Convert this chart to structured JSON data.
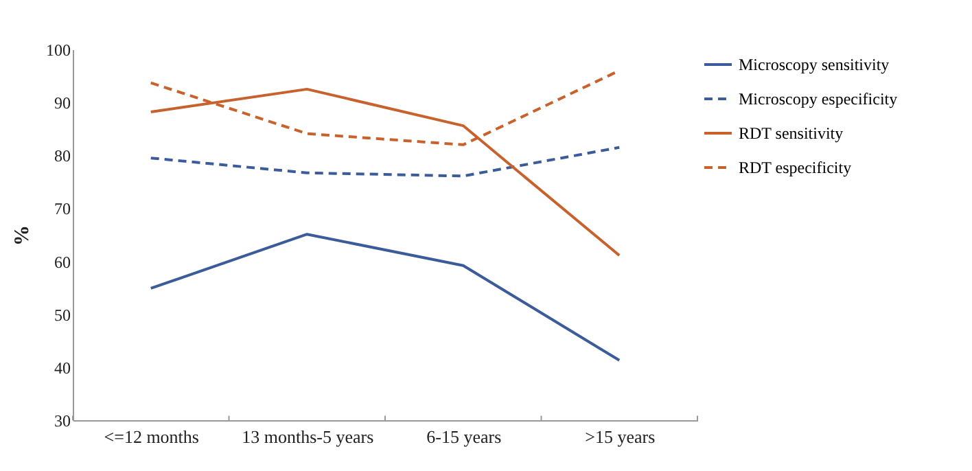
{
  "chart_data": {
    "type": "line",
    "ylabel": "%",
    "categories": [
      "<=12 months",
      "13 months-5 years",
      "6-15 years",
      ">15 years"
    ],
    "series": [
      {
        "name": "Microscopy sensitivity",
        "color": "#3b5b9b",
        "line_style": "solid",
        "values": [
          54.9,
          65.1,
          59.2,
          41.3
        ]
      },
      {
        "name": "Microscopy especificity",
        "color": "#3b5b9b",
        "line_style": "dashed",
        "values": [
          79.5,
          76.7,
          76.1,
          81.5
        ]
      },
      {
        "name": "RDT sensitivity",
        "color": "#c8622d",
        "line_style": "solid",
        "values": [
          88.2,
          92.5,
          85.6,
          61.1
        ]
      },
      {
        "name": "RDT especificity",
        "color": "#c8622d",
        "line_style": "dashed",
        "values": [
          93.7,
          84.1,
          82.0,
          96.0
        ]
      }
    ],
    "ylim": [
      30,
      100
    ],
    "yticks": [
      30,
      40,
      50,
      60,
      70,
      80,
      90,
      100
    ],
    "grid": false,
    "legend": "top right",
    "marker": "none"
  }
}
